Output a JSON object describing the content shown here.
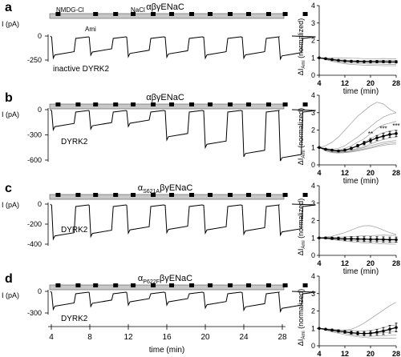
{
  "panels": [
    {
      "letter": "a",
      "title_main": "αβγENaC",
      "title_sub": "",
      "title_rest": "",
      "ylabel_trace": "I (pA)",
      "trace_ticks": [
        "0",
        "-250"
      ],
      "trace_tick_values": [
        0,
        -250
      ],
      "bar_labels": [
        "NMDG-Cl",
        "NaCl"
      ],
      "ami_label": "Ami",
      "condition": "inactive DYRK2"
    },
    {
      "letter": "b",
      "title_main": "αβγENaC",
      "title_sub": "",
      "title_rest": "",
      "ylabel_trace": "I (pA)",
      "trace_ticks": [
        "0",
        "-300",
        "-600"
      ],
      "trace_tick_values": [
        0,
        -300,
        -600
      ],
      "condition": "DYRK2"
    },
    {
      "letter": "c",
      "title_main": "α",
      "title_sub": "S621A",
      "title_rest": "βγENaC",
      "ylabel_trace": "I (pA)",
      "trace_ticks": [
        "0",
        "-200",
        "-400"
      ],
      "trace_tick_values": [
        0,
        -200,
        -400
      ],
      "condition": "DYRK2"
    },
    {
      "letter": "d",
      "title_main": "α",
      "title_sub": "P622F",
      "title_rest": "βγENaC",
      "ylabel_trace": "I (pA)",
      "trace_ticks": [
        "0",
        "-300"
      ],
      "trace_tick_values": [
        0,
        -300
      ],
      "condition": "DYRK2"
    }
  ],
  "time_axis": {
    "ticks": [
      "4",
      "8",
      "12",
      "16",
      "20",
      "24",
      "28"
    ],
    "label": "time (min)"
  },
  "chart_data": [
    {
      "type": "line",
      "panel": "a",
      "ylabel_main": "ΔI",
      "ylabel_sub": "Ami",
      "ylabel_rest": " (normalized)",
      "xlabel": "time (min)",
      "x_ticks": [
        "4",
        "12",
        "20",
        "28"
      ],
      "y_ticks": [
        "0",
        "1",
        "2",
        "3",
        "4"
      ],
      "xlim": [
        4,
        28
      ],
      "ylim": [
        0,
        4
      ],
      "x": [
        4,
        6,
        8,
        10,
        12,
        14,
        16,
        18,
        20,
        22,
        24,
        26,
        28
      ],
      "mean": [
        1.0,
        0.95,
        0.9,
        0.85,
        0.82,
        0.8,
        0.79,
        0.78,
        0.78,
        0.78,
        0.78,
        0.77,
        0.77
      ],
      "sem": [
        0,
        0.05,
        0.05,
        0.06,
        0.06,
        0.06,
        0.06,
        0.06,
        0.07,
        0.07,
        0.07,
        0.07,
        0.07
      ],
      "individual": [
        [
          1.0,
          1.0,
          1.0,
          1.0,
          1.0,
          0.98,
          0.97,
          0.95,
          0.94,
          0.95,
          0.96,
          0.95,
          0.95
        ],
        [
          1.0,
          0.97,
          0.93,
          0.9,
          0.87,
          0.85,
          0.84,
          0.83,
          0.83,
          0.84,
          0.85,
          0.85,
          0.85
        ],
        [
          1.0,
          0.95,
          0.9,
          0.85,
          0.8,
          0.78,
          0.76,
          0.75,
          0.74,
          0.73,
          0.72,
          0.71,
          0.7
        ],
        [
          1.0,
          0.92,
          0.85,
          0.78,
          0.72,
          0.7,
          0.68,
          0.66,
          0.65,
          0.64,
          0.63,
          0.62,
          0.62
        ],
        [
          1.0,
          0.9,
          0.8,
          0.72,
          0.66,
          0.62,
          0.6,
          0.58,
          0.57,
          0.56,
          0.55,
          0.55,
          0.55
        ]
      ]
    },
    {
      "type": "line",
      "panel": "b",
      "ylabel_main": "ΔI",
      "ylabel_sub": "Ami",
      "ylabel_rest": " (normalized)",
      "xlabel": "time (min)",
      "x_ticks": [
        "4",
        "12",
        "20",
        "28"
      ],
      "y_ticks": [
        "0",
        "1",
        "2",
        "3",
        "4"
      ],
      "xlim": [
        4,
        28
      ],
      "ylim": [
        0,
        4
      ],
      "x": [
        4,
        6,
        8,
        10,
        12,
        14,
        16,
        18,
        20,
        22,
        24,
        26,
        28
      ],
      "mean": [
        1.0,
        0.9,
        0.85,
        0.8,
        0.85,
        0.95,
        1.1,
        1.25,
        1.4,
        1.55,
        1.65,
        1.75,
        1.8
      ],
      "sem": [
        0,
        0.05,
        0.05,
        0.05,
        0.06,
        0.07,
        0.08,
        0.1,
        0.12,
        0.14,
        0.16,
        0.17,
        0.18
      ],
      "significance": [
        {
          "x": 20,
          "label": "**"
        },
        {
          "x": 24,
          "label": "***"
        },
        {
          "x": 28,
          "label": "***"
        }
      ],
      "individual": [
        [
          1.0,
          1.1,
          1.3,
          1.6,
          2.0,
          2.4,
          2.8,
          3.1,
          3.4,
          3.6,
          3.5,
          3.2,
          3.0
        ],
        [
          1.0,
          0.95,
          0.9,
          0.95,
          1.1,
          1.35,
          1.6,
          1.9,
          2.2,
          2.5,
          2.75,
          2.9,
          3.0
        ],
        [
          1.0,
          0.9,
          0.85,
          0.85,
          0.95,
          1.1,
          1.3,
          1.5,
          1.8,
          2.1,
          2.3,
          2.4,
          2.5
        ],
        [
          1.0,
          0.88,
          0.8,
          0.78,
          0.82,
          0.95,
          1.1,
          1.3,
          1.5,
          1.7,
          1.85,
          1.95,
          2.0
        ],
        [
          1.0,
          0.85,
          0.78,
          0.75,
          0.78,
          0.85,
          0.95,
          1.05,
          1.2,
          1.35,
          1.45,
          1.55,
          1.6
        ],
        [
          1.0,
          0.82,
          0.75,
          0.72,
          0.74,
          0.8,
          0.9,
          1.0,
          1.1,
          1.2,
          1.3,
          1.35,
          1.4
        ],
        [
          1.0,
          0.8,
          0.72,
          0.7,
          0.72,
          0.78,
          0.85,
          0.92,
          1.0,
          1.1,
          1.2,
          1.25,
          1.3
        ],
        [
          1.0,
          0.8,
          0.7,
          0.68,
          0.7,
          0.74,
          0.8,
          0.88,
          0.95,
          1.05,
          1.12,
          1.18,
          1.2
        ]
      ]
    },
    {
      "type": "line",
      "panel": "c",
      "ylabel_main": "ΔI",
      "ylabel_sub": "Ami",
      "ylabel_rest": " (normalized)",
      "xlabel": "time (min)",
      "x_ticks": [
        "4",
        "12",
        "20",
        "28"
      ],
      "y_ticks": [
        "0",
        "1",
        "2",
        "3",
        "4"
      ],
      "xlim": [
        4,
        28
      ],
      "ylim": [
        0,
        4
      ],
      "x": [
        4,
        6,
        8,
        10,
        12,
        14,
        16,
        18,
        20,
        22,
        24,
        26,
        28
      ],
      "mean": [
        1.0,
        1.0,
        0.98,
        0.97,
        0.95,
        0.95,
        0.94,
        0.93,
        0.92,
        0.92,
        0.91,
        0.9,
        0.9
      ],
      "sem": [
        0,
        0.05,
        0.07,
        0.08,
        0.1,
        0.12,
        0.13,
        0.14,
        0.15,
        0.15,
        0.15,
        0.15,
        0.15
      ],
      "individual": [
        [
          1.0,
          1.05,
          1.1,
          1.2,
          1.3,
          1.45,
          1.6,
          1.7,
          1.7,
          1.6,
          1.45,
          1.3,
          1.2
        ],
        [
          1.0,
          1.02,
          1.03,
          1.05,
          1.06,
          1.08,
          1.1,
          1.12,
          1.13,
          1.15,
          1.16,
          1.15,
          1.15
        ],
        [
          1.0,
          0.98,
          0.97,
          0.96,
          0.95,
          0.94,
          0.93,
          0.93,
          0.92,
          0.92,
          0.91,
          0.91,
          0.9
        ],
        [
          1.0,
          0.96,
          0.93,
          0.9,
          0.88,
          0.86,
          0.84,
          0.82,
          0.8,
          0.79,
          0.78,
          0.77,
          0.76
        ],
        [
          1.0,
          0.94,
          0.9,
          0.86,
          0.82,
          0.78,
          0.75,
          0.72,
          0.7,
          0.68,
          0.66,
          0.65,
          0.64
        ]
      ]
    },
    {
      "type": "line",
      "panel": "d",
      "ylabel_main": "ΔI",
      "ylabel_sub": "Ami",
      "ylabel_rest": " (normalized)",
      "xlabel": "time (min)",
      "x_ticks": [
        "4",
        "12",
        "20",
        "28"
      ],
      "y_ticks": [
        "0",
        "1",
        "2",
        "3",
        "4"
      ],
      "xlim": [
        4,
        28
      ],
      "ylim": [
        0,
        4
      ],
      "x": [
        4,
        6,
        8,
        10,
        12,
        14,
        16,
        18,
        20,
        22,
        24,
        26,
        28
      ],
      "mean": [
        1.0,
        0.95,
        0.9,
        0.85,
        0.8,
        0.75,
        0.72,
        0.7,
        0.72,
        0.78,
        0.85,
        0.95,
        1.05
      ],
      "sem": [
        0,
        0.05,
        0.06,
        0.07,
        0.08,
        0.09,
        0.1,
        0.12,
        0.14,
        0.17,
        0.2,
        0.22,
        0.25
      ],
      "individual": [
        [
          1.0,
          0.95,
          0.92,
          0.9,
          0.9,
          0.95,
          1.1,
          1.3,
          1.55,
          1.8,
          2.05,
          2.3,
          2.5
        ],
        [
          1.0,
          0.98,
          0.95,
          0.92,
          0.9,
          0.88,
          0.86,
          0.86,
          0.88,
          0.95,
          1.05,
          1.15,
          1.2
        ],
        [
          1.0,
          0.95,
          0.9,
          0.85,
          0.8,
          0.75,
          0.72,
          0.7,
          0.7,
          0.72,
          0.75,
          0.8,
          0.85
        ],
        [
          1.0,
          0.92,
          0.85,
          0.78,
          0.72,
          0.66,
          0.6,
          0.56,
          0.55,
          0.56,
          0.58,
          0.6,
          0.62
        ],
        [
          1.0,
          0.9,
          0.8,
          0.72,
          0.64,
          0.58,
          0.52,
          0.48,
          0.45,
          0.44,
          0.43,
          0.43,
          0.44
        ]
      ]
    }
  ],
  "colors": {
    "trace": "#000000",
    "bar_fill": "#c8c8c8",
    "bar_stroke": "#555555",
    "marker": "#000000",
    "individual": "#9a9a9a",
    "mean": "#000000"
  }
}
